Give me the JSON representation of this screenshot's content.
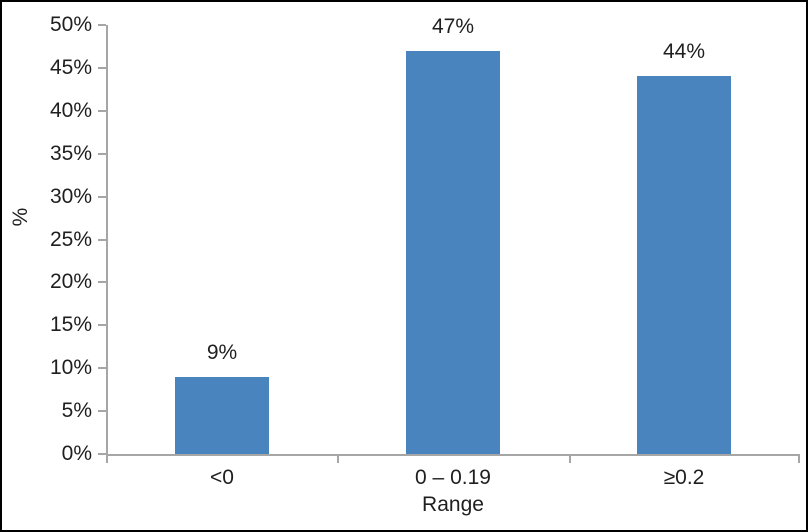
{
  "figure": {
    "background": "#ffffff",
    "border_color": "#000000"
  },
  "chart_data": {
    "type": "bar",
    "title": "",
    "categories": [
      "<0",
      "0 – 0.19",
      "≥0.2"
    ],
    "values": [
      9,
      47,
      44
    ],
    "data_labels": [
      "9%",
      "47%",
      "44%"
    ],
    "xlabel": "Range",
    "ylabel": "%",
    "ylim": [
      0,
      50
    ],
    "y_tick_step": 5,
    "y_tick_labels": [
      "0%",
      "5%",
      "10%",
      "15%",
      "20%",
      "25%",
      "30%",
      "35%",
      "40%",
      "45%",
      "50%"
    ],
    "grid": false,
    "legend": "none",
    "bar_color": "#4A84BE",
    "axis_color": "#A6A6A6",
    "text_color": "#1F1F1F"
  }
}
